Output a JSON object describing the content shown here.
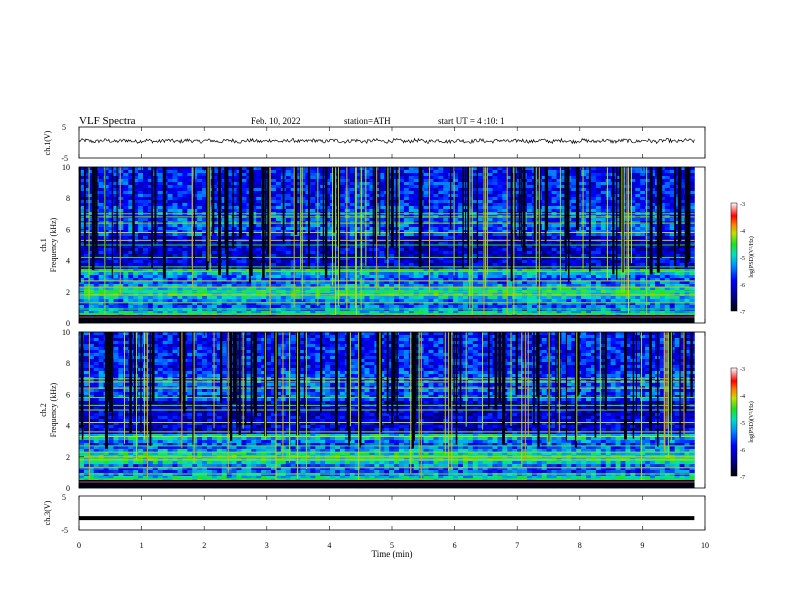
{
  "header": {
    "title": "VLF  Spectra",
    "date": "Feb. 10, 2022",
    "station": "station=ATH",
    "start": "start  UT  =   4  :10: 1"
  },
  "chart_data": [
    {
      "type": "line",
      "panel": "ch1-waveform",
      "ylabel": "ch.1(V)",
      "yticks": [
        "5",
        "-5"
      ],
      "ylim": [
        -5,
        5
      ],
      "xlim": [
        0,
        10
      ],
      "series": [
        {
          "values_description_only": false,
          "approx_level": 0.5,
          "noise_amplitude": 0.6
        }
      ]
    },
    {
      "type": "heatmap",
      "panel": "ch1-spectrogram",
      "ylabel": "ch.1\nFrequency (kHz)",
      "ylabel_lines": [
        "ch.1",
        "Frequency (kHz)"
      ],
      "yticks": [
        "0",
        "2",
        "4",
        "6",
        "8",
        "10"
      ],
      "ylim": [
        0,
        10
      ],
      "xlim": [
        0,
        10
      ],
      "data_end_min": 9.83,
      "colorbar": {
        "label": "log(PSD)(V²/Hz)",
        "ticks": [
          "-3",
          "-4",
          "-5",
          "-6",
          "-7"
        ],
        "range": [
          -7,
          -3
        ]
      }
    },
    {
      "type": "heatmap",
      "panel": "ch2-spectrogram",
      "ylabel_lines": [
        "ch.2",
        "Frequency (kHz)"
      ],
      "yticks": [
        "0",
        "2",
        "4",
        "6",
        "8",
        "10"
      ],
      "ylim": [
        0,
        10
      ],
      "xlim": [
        0,
        10
      ],
      "data_end_min": 9.83,
      "colorbar": {
        "label": "log(PSD)(V²/Hz)",
        "ticks": [
          "-3",
          "-4",
          "-5",
          "-6",
          "-7"
        ],
        "range": [
          -7,
          -3
        ]
      }
    },
    {
      "type": "line",
      "panel": "ch3-waveform",
      "ylabel": "ch.3(V)",
      "yticks": [
        "5",
        "-5"
      ],
      "ylim": [
        -5,
        5
      ],
      "xlim": [
        0,
        10
      ],
      "xlabel": "Time  (min)",
      "xticks": [
        "0",
        "1",
        "2",
        "3",
        "4",
        "5",
        "6",
        "7",
        "8",
        "9",
        "10"
      ],
      "series": [
        {
          "constant_value": -1.5
        }
      ]
    }
  ]
}
